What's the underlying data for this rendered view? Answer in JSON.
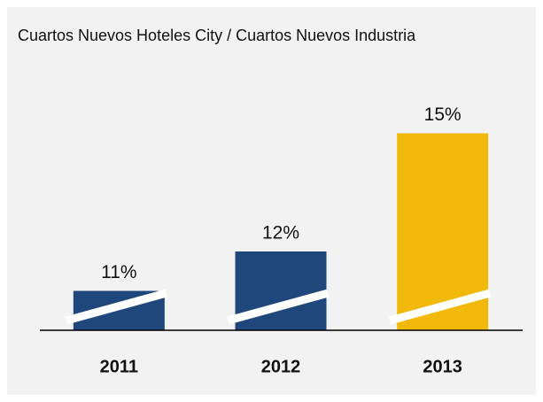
{
  "chart_data": {
    "type": "bar",
    "title": "Cuartos Nuevos Hoteles City / Cuartos Nuevos Industria",
    "categories": [
      "2011",
      "2012",
      "2013"
    ],
    "values": [
      11,
      12,
      15
    ],
    "value_labels": [
      "11%",
      "12%",
      "15%"
    ],
    "colors": [
      "#1f477b",
      "#1f477b",
      "#f0b90c"
    ],
    "ylim": [
      10,
      16
    ]
  }
}
